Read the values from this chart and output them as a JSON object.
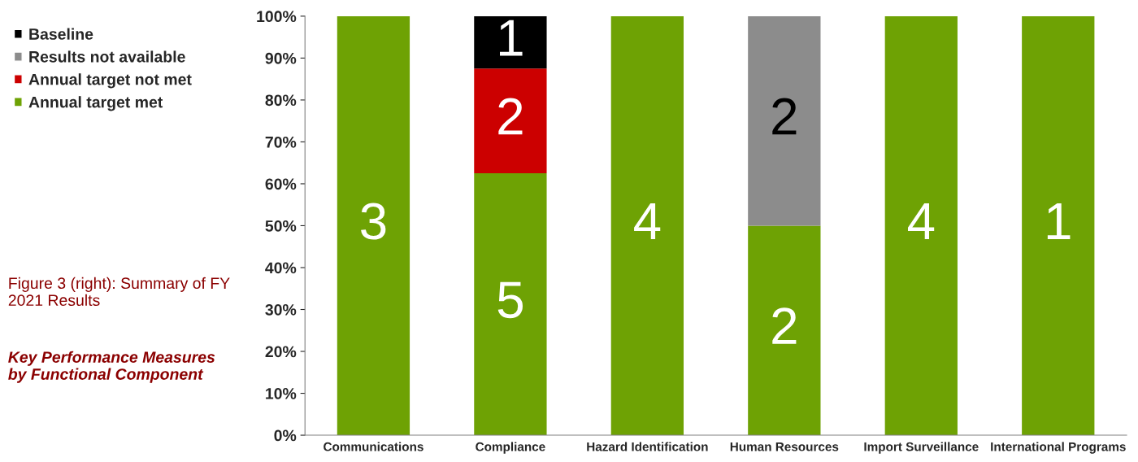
{
  "chart_data": {
    "type": "bar",
    "stacked": true,
    "categories": [
      "Communications",
      "Compliance",
      "Hazard Identification",
      "Human Resources",
      "Import Surveillance",
      "International Programs"
    ],
    "series": [
      {
        "name": "Annual target met",
        "color": "#6ea204",
        "values": [
          100,
          62.5,
          100,
          50,
          100,
          100
        ]
      },
      {
        "name": "Annual target not met",
        "color": "#cc0000",
        "values": [
          null,
          25,
          null,
          null,
          null,
          null
        ]
      },
      {
        "name": "Results not available",
        "color": "#8c8c8c",
        "values": [
          null,
          null,
          null,
          50,
          null,
          null
        ]
      },
      {
        "name": "Baseline",
        "color": "#000000",
        "values": [
          null,
          12.5,
          null,
          null,
          null,
          null
        ]
      }
    ],
    "ylim": [
      0,
      100
    ],
    "yticks": [
      {
        "value": 0,
        "label": "0%"
      },
      {
        "value": 10,
        "label": "10%"
      },
      {
        "value": 20,
        "label": "20%"
      },
      {
        "value": 30,
        "label": "30%"
      },
      {
        "value": 40,
        "label": "40%"
      },
      {
        "value": 50,
        "label": "50%"
      },
      {
        "value": 60,
        "label": "60%"
      },
      {
        "value": 70,
        "label": "70%"
      },
      {
        "value": 80,
        "label": "80%"
      },
      {
        "value": 90,
        "label": "90%"
      },
      {
        "value": 100,
        "label": "100%"
      }
    ],
    "legend": "left",
    "grid": false,
    "annotations": [
      "Figure 3 (right): Summary of FY 2021 Results",
      "Key Performance Measures by Functional Component",
      "3",
      "5",
      "2",
      "1",
      "4",
      "2",
      "2",
      "4",
      "1"
    ]
  }
}
